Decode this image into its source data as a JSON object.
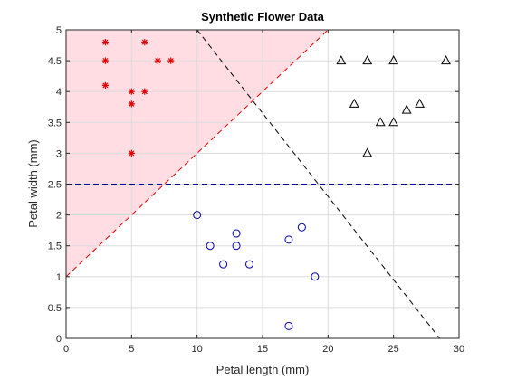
{
  "chart_data": {
    "type": "scatter",
    "title": "Synthetic Flower Data",
    "xlabel": "Petal length (mm)",
    "ylabel": "Petal width (mm)",
    "xlim": [
      0,
      30
    ],
    "ylim": [
      0,
      5
    ],
    "xticks": [
      "0",
      "5",
      "10",
      "15",
      "20",
      "25",
      "30"
    ],
    "yticks": [
      "0",
      "0.5",
      "1",
      "1.5",
      "2",
      "2.5",
      "3",
      "3.5",
      "4",
      "4.5",
      "5"
    ],
    "grid": true,
    "legend": "none",
    "colors": {
      "red": "#e00000",
      "blue": "#0000aa",
      "black": "#000000",
      "shade": "#ffdde2",
      "red_line": "#e00000",
      "blue_line": "#000099",
      "black_line": "#000000",
      "grid": "#dcdcdc",
      "axis": "#262626"
    },
    "series": [
      {
        "marker": "asterisk",
        "color": "red",
        "points": [
          [
            3,
            4.8
          ],
          [
            6,
            4.8
          ],
          [
            3,
            4.5
          ],
          [
            7,
            4.5
          ],
          [
            8,
            4.5
          ],
          [
            3,
            4.1
          ],
          [
            5,
            4.0
          ],
          [
            6,
            4.0
          ],
          [
            5,
            3.8
          ],
          [
            5,
            3.0
          ]
        ]
      },
      {
        "marker": "circle",
        "color": "blue",
        "points": [
          [
            10,
            2.0
          ],
          [
            11,
            1.5
          ],
          [
            12,
            1.2
          ],
          [
            13,
            1.7
          ],
          [
            13,
            1.5
          ],
          [
            14,
            1.2
          ],
          [
            17,
            1.6
          ],
          [
            18,
            1.8
          ],
          [
            19,
            1.0
          ],
          [
            17,
            0.2
          ]
        ]
      },
      {
        "marker": "triangle",
        "color": "black",
        "points": [
          [
            21,
            4.5
          ],
          [
            23,
            4.5
          ],
          [
            25,
            4.5
          ],
          [
            29,
            4.5
          ],
          [
            22,
            3.8
          ],
          [
            24,
            3.5
          ],
          [
            25,
            3.5
          ],
          [
            26,
            3.7
          ],
          [
            27,
            3.8
          ],
          [
            23,
            3.0
          ]
        ]
      }
    ],
    "lines": [
      {
        "style": "dashed",
        "color": "red_line",
        "from": [
          0,
          1.0
        ],
        "to": [
          20,
          5.0
        ]
      },
      {
        "style": "dashed",
        "color": "blue_line",
        "from": [
          0,
          2.5
        ],
        "to": [
          30,
          2.5
        ]
      },
      {
        "style": "dashed",
        "color": "black_line",
        "from": [
          10,
          5.0
        ],
        "to": [
          30,
          -0.4
        ]
      }
    ],
    "shaded_region": {
      "color": "shade",
      "polygon": [
        [
          0,
          1.0
        ],
        [
          20,
          5.0
        ],
        [
          0,
          5.0
        ]
      ]
    }
  }
}
